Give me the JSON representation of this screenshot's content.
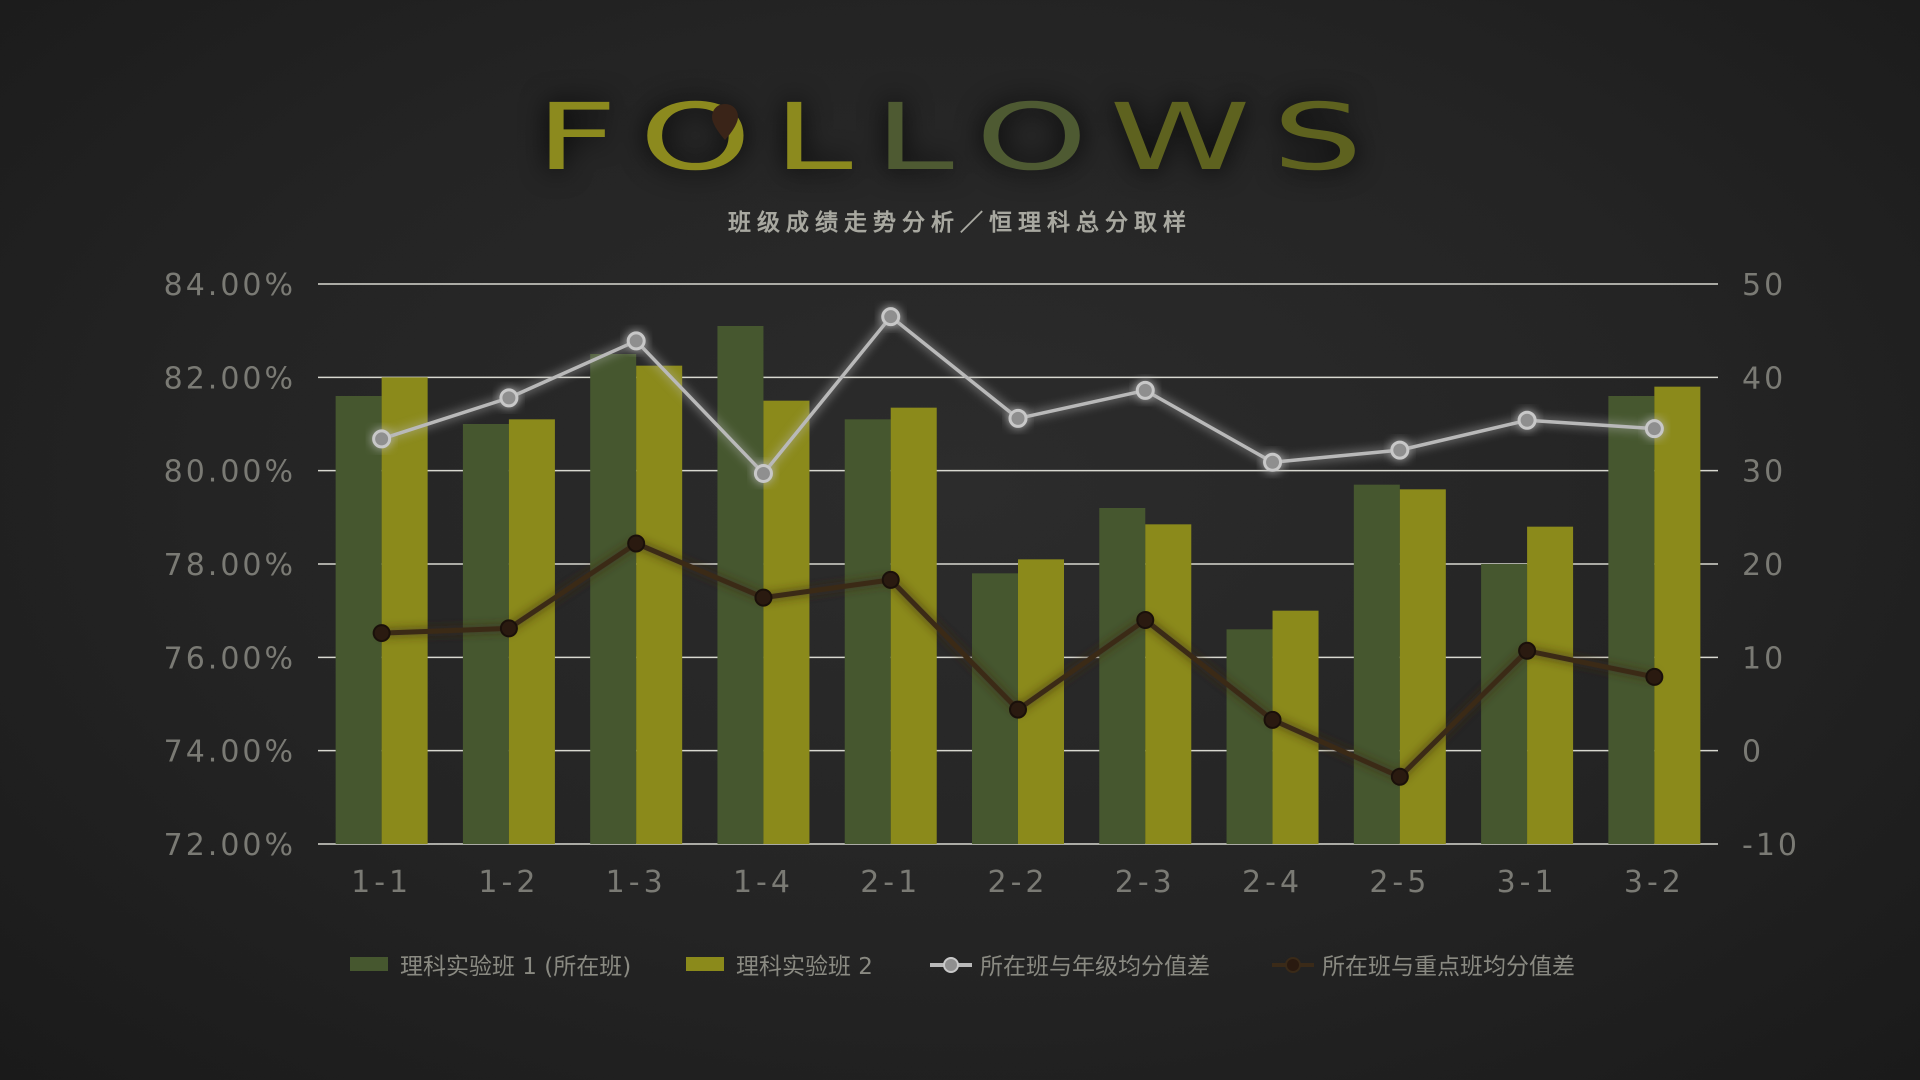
{
  "title": {
    "letters": [
      "F",
      "O",
      "L",
      "L",
      "O",
      "W",
      "S"
    ],
    "letter_colors": [
      "#8c8a1e",
      "#8c8a1e",
      "#8c8a1e",
      "#4e5a32",
      "#4e5a32",
      "#5e621f",
      "#5e621f"
    ]
  },
  "subtitle": "班级成绩走势分析／恒理科总分取样",
  "chart_data": {
    "type": "bar",
    "categories": [
      "1-1",
      "1-2",
      "1-3",
      "1-4",
      "2-1",
      "2-2",
      "2-3",
      "2-4",
      "2-5",
      "3-1",
      "3-2"
    ],
    "y_left": {
      "ylim": [
        72,
        84
      ],
      "ticks": [
        84,
        82,
        80,
        78,
        76,
        74,
        72
      ],
      "tick_labels": [
        "84.00%",
        "82.00%",
        "80.00%",
        "78.00%",
        "76.00%",
        "74.00%",
        "72.00%"
      ]
    },
    "y_right": {
      "ylim": [
        -10,
        50
      ],
      "ticks": [
        50,
        40,
        30,
        20,
        10,
        0,
        -10
      ],
      "tick_labels": [
        "50",
        "40",
        "30",
        "20",
        "10",
        "0",
        "-10"
      ]
    },
    "grid": true,
    "legend_position": "bottom",
    "series": [
      {
        "name": "理科实验班 1 (所在班)",
        "type": "bar",
        "axis": "left",
        "color": "#46572f",
        "values": [
          81.6,
          81.0,
          82.5,
          83.1,
          81.1,
          77.8,
          79.2,
          76.6,
          79.7,
          78.0,
          81.6
        ]
      },
      {
        "name": "理科实验班 2",
        "type": "bar",
        "axis": "left",
        "color": "#8b8a1b",
        "values": [
          82.0,
          81.1,
          82.25,
          81.5,
          81.35,
          78.1,
          78.85,
          77.0,
          79.6,
          78.8,
          81.8
        ]
      },
      {
        "name": "所在班与年级均分值差",
        "type": "line",
        "axis": "right",
        "color": "#b9b9b9",
        "values": [
          33.4,
          37.8,
          43.9,
          29.7,
          46.5,
          35.6,
          38.6,
          30.9,
          32.2,
          35.4,
          34.5
        ]
      },
      {
        "name": "所在班与重点班均分值差",
        "type": "line",
        "axis": "right",
        "color": "#3a2a18",
        "values": [
          12.6,
          13.1,
          22.2,
          16.4,
          18.3,
          4.4,
          14.0,
          3.3,
          -2.8,
          10.7,
          7.9
        ]
      }
    ]
  }
}
